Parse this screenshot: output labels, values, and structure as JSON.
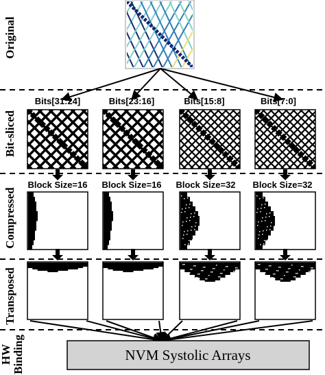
{
  "rows": {
    "original": "Original",
    "bit_sliced": "Bit-sliced",
    "compressed": "Compressed",
    "transposed": "Transposed",
    "hw_binding_line1": "HW",
    "hw_binding_line2": "Binding"
  },
  "bit_slices": [
    "Bits[31:24]",
    "Bits[23:16]",
    "Bits[15:8]",
    "Bits[7:0]"
  ],
  "block_sizes": [
    "Block Size=16",
    "Block Size=16",
    "Block Size=32",
    "Block Size=32"
  ],
  "hw_box": "NVM Systolic Arrays",
  "colors": {
    "ink": "#000000",
    "hw_box_fill": "#d3d3d3",
    "original_dark": "#14286e",
    "original_mid": "#2f7fb8",
    "original_light": "#7fd0c8",
    "original_yellow": "#e8e070"
  }
}
